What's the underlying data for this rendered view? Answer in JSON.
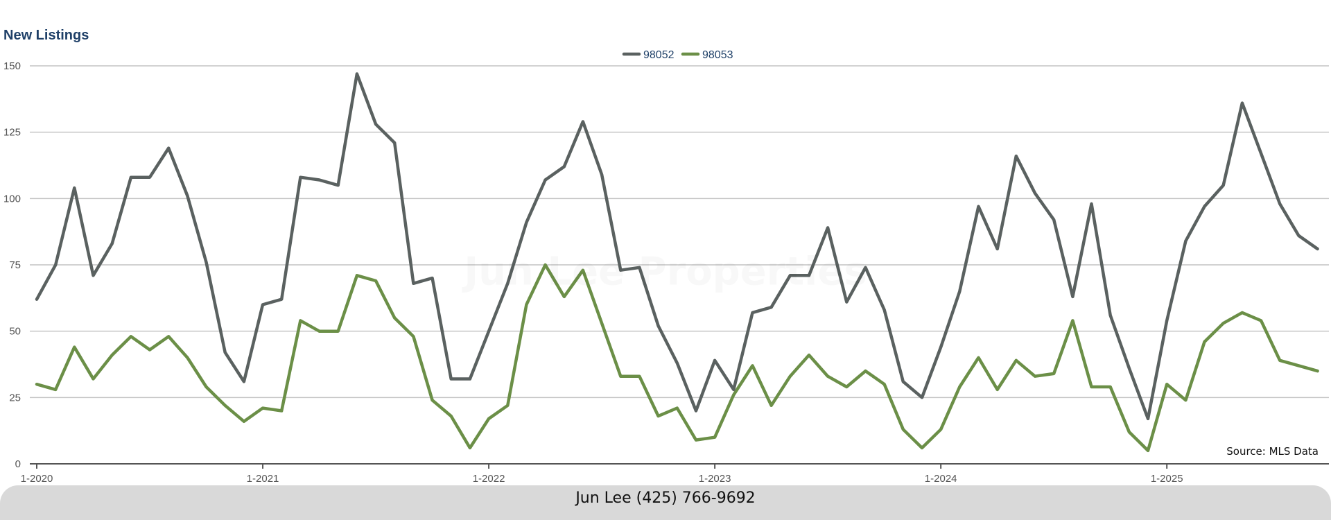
{
  "chart_data": {
    "type": "line",
    "title": "New Listings",
    "ylim": [
      0,
      150
    ],
    "yticks": [
      "0",
      "25",
      "50",
      "75",
      "100",
      "125",
      "150"
    ],
    "x_start": "2020-01",
    "xtick_labels": [
      "1-2020",
      "1-2021",
      "1-2022",
      "1-2023",
      "1-2024",
      "1-2025"
    ],
    "grid": true,
    "legend_position": "top-center",
    "series": [
      {
        "name": "98052",
        "color": "#5a6160",
        "values": [
          62,
          75,
          104,
          71,
          83,
          108,
          108,
          119,
          101,
          76,
          42,
          31,
          60,
          62,
          108,
          107,
          105,
          147,
          128,
          121,
          68,
          70,
          32,
          32,
          50,
          68,
          91,
          107,
          112,
          129,
          109,
          73,
          74,
          52,
          38,
          20,
          39,
          28,
          57,
          59,
          71,
          71,
          89,
          61,
          74,
          58,
          31,
          25,
          44,
          65,
          97,
          81,
          116,
          102,
          92,
          63,
          98,
          56,
          36,
          17,
          54,
          84,
          97,
          105,
          136,
          117,
          98,
          86,
          81
        ]
      },
      {
        "name": "98053",
        "color": "#6b8f47",
        "values": [
          30,
          28,
          44,
          32,
          41,
          48,
          43,
          48,
          40,
          29,
          22,
          16,
          21,
          20,
          54,
          50,
          50,
          71,
          69,
          55,
          48,
          24,
          18,
          6,
          17,
          22,
          60,
          75,
          63,
          73,
          53,
          33,
          33,
          18,
          21,
          9,
          10,
          26,
          37,
          22,
          33,
          41,
          33,
          29,
          35,
          30,
          13,
          6,
          13,
          29,
          40,
          28,
          39,
          33,
          34,
          54,
          29,
          29,
          12,
          5,
          30,
          24,
          46,
          53,
          57,
          54,
          39,
          37,
          35
        ]
      }
    ]
  },
  "watermark": "Jun Lee Properties",
  "source_note": "Source: MLS Data",
  "footer_text": "Jun Lee (425) 766-9692"
}
